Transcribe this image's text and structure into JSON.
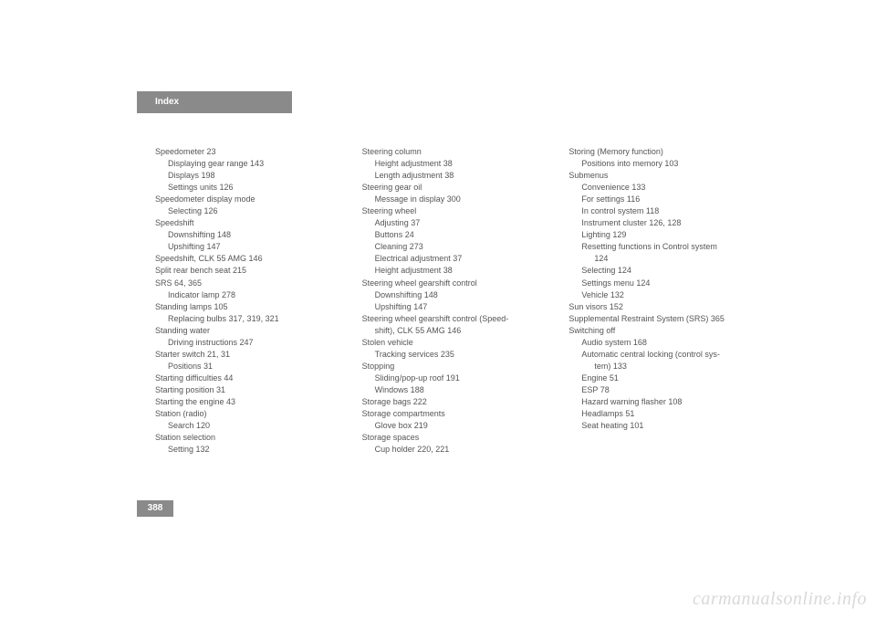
{
  "header": {
    "tab_label": "Index"
  },
  "page_number": "388",
  "watermark": "carmanualsonline.info",
  "columns": [
    [
      {
        "t": "Speedometer 23",
        "lvl": 0
      },
      {
        "t": "Displaying gear range 143",
        "lvl": 1
      },
      {
        "t": "Displays 198",
        "lvl": 1
      },
      {
        "t": "Settings units 126",
        "lvl": 1
      },
      {
        "t": "Speedometer display mode",
        "lvl": 0
      },
      {
        "t": "Selecting 126",
        "lvl": 1
      },
      {
        "t": "Speedshift",
        "lvl": 0
      },
      {
        "t": "Downshifting 148",
        "lvl": 1
      },
      {
        "t": "Upshifting 147",
        "lvl": 1
      },
      {
        "t": "Speedshift, CLK 55 AMG 146",
        "lvl": 0
      },
      {
        "t": "Split rear bench seat 215",
        "lvl": 0
      },
      {
        "t": "SRS 64, 365",
        "lvl": 0
      },
      {
        "t": "Indicator lamp 278",
        "lvl": 1
      },
      {
        "t": "Standing lamps 105",
        "lvl": 0
      },
      {
        "t": "Replacing bulbs 317, 319, 321",
        "lvl": 1
      },
      {
        "t": "Standing water",
        "lvl": 0
      },
      {
        "t": "Driving instructions 247",
        "lvl": 1
      },
      {
        "t": "Starter switch 21, 31",
        "lvl": 0
      },
      {
        "t": "Positions 31",
        "lvl": 1
      },
      {
        "t": "Starting difficulties 44",
        "lvl": 0
      },
      {
        "t": "Starting position 31",
        "lvl": 0
      },
      {
        "t": "Starting the engine 43",
        "lvl": 0
      },
      {
        "t": "Station (radio)",
        "lvl": 0
      },
      {
        "t": "Search 120",
        "lvl": 1
      },
      {
        "t": "Station selection",
        "lvl": 0
      },
      {
        "t": "Setting 132",
        "lvl": 1
      }
    ],
    [
      {
        "t": "Steering column",
        "lvl": 0
      },
      {
        "t": "Height adjustment 38",
        "lvl": 1
      },
      {
        "t": "Length adjustment 38",
        "lvl": 1
      },
      {
        "t": "Steering gear oil",
        "lvl": 0
      },
      {
        "t": "Message in display 300",
        "lvl": 1
      },
      {
        "t": "Steering wheel",
        "lvl": 0
      },
      {
        "t": "Adjusting 37",
        "lvl": 1
      },
      {
        "t": "Buttons 24",
        "lvl": 1
      },
      {
        "t": "Cleaning 273",
        "lvl": 1
      },
      {
        "t": "Electrical adjustment 37",
        "lvl": 1
      },
      {
        "t": "Height adjustment 38",
        "lvl": 1
      },
      {
        "t": "Steering wheel gearshift control",
        "lvl": 0
      },
      {
        "t": "Downshifting 148",
        "lvl": 1
      },
      {
        "t": "Upshifting 147",
        "lvl": 1
      },
      {
        "t": "Steering wheel gearshift control (Speed-",
        "lvl": 0
      },
      {
        "t": "shift), CLK 55 AMG 146",
        "lvl": 1
      },
      {
        "t": "Stolen vehicle",
        "lvl": 0
      },
      {
        "t": "Tracking services 235",
        "lvl": 1
      },
      {
        "t": "Stopping",
        "lvl": 0
      },
      {
        "t": "Sliding/pop-up roof 191",
        "lvl": 1
      },
      {
        "t": "Windows 188",
        "lvl": 1
      },
      {
        "t": "Storage bags 222",
        "lvl": 0
      },
      {
        "t": "Storage compartments",
        "lvl": 0
      },
      {
        "t": "Glove box 219",
        "lvl": 1
      },
      {
        "t": "Storage spaces",
        "lvl": 0
      },
      {
        "t": "Cup holder 220, 221",
        "lvl": 1
      }
    ],
    [
      {
        "t": "Storing (Memory function)",
        "lvl": 0
      },
      {
        "t": "Positions into memory 103",
        "lvl": 1
      },
      {
        "t": "Submenus",
        "lvl": 0
      },
      {
        "t": "Convenience 133",
        "lvl": 1
      },
      {
        "t": "For settings 116",
        "lvl": 1
      },
      {
        "t": "In control system 118",
        "lvl": 1
      },
      {
        "t": "Instrument cluster 126, 128",
        "lvl": 1
      },
      {
        "t": "Lighting 129",
        "lvl": 1
      },
      {
        "t": "Resetting functions in Control system",
        "lvl": 1
      },
      {
        "t": "124",
        "lvl": 2
      },
      {
        "t": "Selecting 124",
        "lvl": 1
      },
      {
        "t": "Settings menu 124",
        "lvl": 1
      },
      {
        "t": "Vehicle 132",
        "lvl": 1
      },
      {
        "t": "Sun visors 152",
        "lvl": 0
      },
      {
        "t": "Supplemental Restraint System (SRS) 365",
        "lvl": 0
      },
      {
        "t": "Switching off",
        "lvl": 0
      },
      {
        "t": "Audio system 168",
        "lvl": 1
      },
      {
        "t": "Automatic central locking (control sys-",
        "lvl": 1
      },
      {
        "t": "tem) 133",
        "lvl": 2
      },
      {
        "t": "Engine 51",
        "lvl": 1
      },
      {
        "t": "ESP 78",
        "lvl": 1
      },
      {
        "t": "Hazard warning flasher 108",
        "lvl": 1
      },
      {
        "t": "Headlamps 51",
        "lvl": 1
      },
      {
        "t": "Seat heating 101",
        "lvl": 1
      }
    ]
  ]
}
